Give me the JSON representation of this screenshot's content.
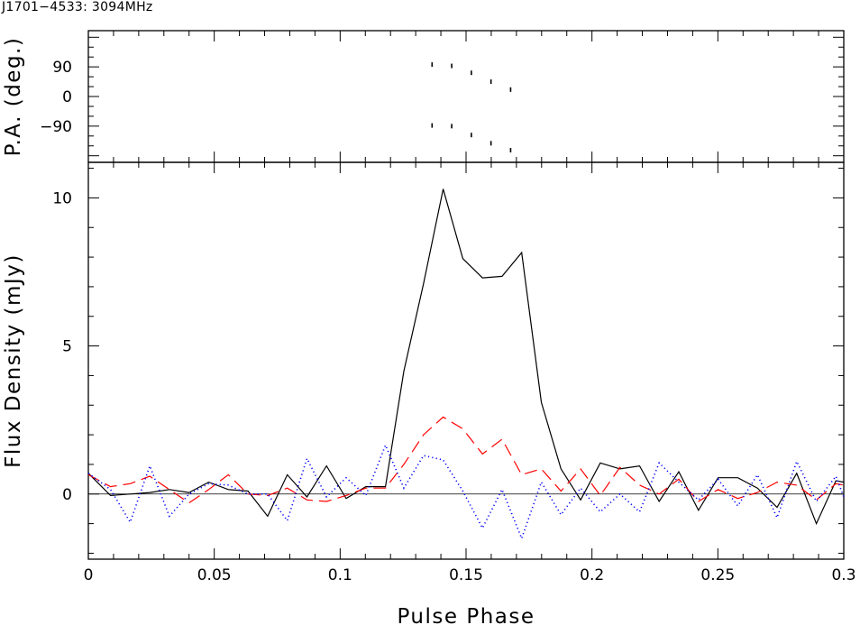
{
  "title": "J1701−4533: 3094MHz",
  "chart_data": [
    {
      "type": "scatter",
      "ylabel": "P.A. (deg.)",
      "xlim": [
        0,
        0.3
      ],
      "ylim": [
        -200,
        200
      ],
      "yticks": [
        {
          "v": 90,
          "label": "90"
        },
        {
          "v": 0,
          "label": "0"
        },
        {
          "v": -90,
          "label": "−90"
        }
      ],
      "points": [
        [
          0.1365,
          97
        ],
        [
          0.1443,
          93
        ],
        [
          0.1521,
          72
        ],
        [
          0.1599,
          45
        ],
        [
          0.1677,
          21
        ],
        [
          0.1365,
          -88
        ],
        [
          0.1443,
          -90
        ],
        [
          0.1521,
          -117
        ],
        [
          0.1599,
          -142
        ],
        [
          0.1677,
          -163
        ]
      ]
    },
    {
      "type": "line",
      "xlabel": "Pulse Phase",
      "ylabel": "Flux Density (mJy)",
      "xlim": [
        0,
        0.3
      ],
      "ylim": [
        -2.2,
        11.2
      ],
      "xticks": [
        {
          "v": 0,
          "label": "0"
        },
        {
          "v": 0.05,
          "label": "0.05"
        },
        {
          "v": 0.1,
          "label": "0.1"
        },
        {
          "v": 0.15,
          "label": "0.15"
        },
        {
          "v": 0.2,
          "label": "0.2"
        },
        {
          "v": 0.25,
          "label": "0.25"
        },
        {
          "v": 0.3,
          "label": "0.3"
        }
      ],
      "yticks": [
        {
          "v": 0,
          "label": "0"
        },
        {
          "v": 5,
          "label": "5"
        },
        {
          "v": 10,
          "label": "10"
        }
      ],
      "x": [
        0,
        0.0088,
        0.0166,
        0.0244,
        0.0322,
        0.04,
        0.0478,
        0.0556,
        0.0634,
        0.0712,
        0.079,
        0.0868,
        0.0946,
        0.1024,
        0.1102,
        0.118,
        0.1253,
        0.1331,
        0.1409,
        0.1487,
        0.1565,
        0.1643,
        0.1721,
        0.1799,
        0.1877,
        0.1955,
        0.2033,
        0.2111,
        0.2189,
        0.2267,
        0.2345,
        0.2423,
        0.2501,
        0.2579,
        0.2657,
        0.2735,
        0.2813,
        0.2891,
        0.2969,
        0.3
      ],
      "series": [
        {
          "color": "#000000",
          "dash": "solid",
          "values": [
            0.7,
            -0.05,
            0.0,
            0.05,
            0.15,
            0.05,
            0.4,
            0.15,
            0.1,
            -0.75,
            0.65,
            -0.1,
            0.95,
            -0.15,
            0.25,
            0.25,
            4.15,
            7.1,
            10.3,
            7.95,
            7.3,
            7.35,
            8.15,
            3.1,
            0.85,
            -0.2,
            1.05,
            0.85,
            0.95,
            -0.25,
            0.75,
            -0.55,
            0.55,
            0.55,
            0.2,
            -0.45,
            0.7,
            -1.0,
            0.45,
            0.4
          ]
        },
        {
          "color": "#ff0000",
          "dash": "dashed",
          "values": [
            0.65,
            0.25,
            0.35,
            0.6,
            0.15,
            -0.3,
            0.15,
            0.65,
            0.0,
            -0.05,
            0.2,
            -0.2,
            -0.25,
            -0.05,
            0.2,
            0.2,
            1.0,
            2.0,
            2.6,
            2.2,
            1.35,
            1.85,
            0.65,
            0.85,
            0.1,
            0.85,
            -0.05,
            0.9,
            0.3,
            0.0,
            0.5,
            -0.25,
            0.15,
            -0.15,
            0.05,
            0.4,
            0.3,
            -0.2,
            0.35,
            0.3
          ]
        },
        {
          "color": "#0000ff",
          "dash": "dotted",
          "values": [
            0.7,
            0.15,
            -0.95,
            0.95,
            -0.75,
            0.0,
            0.35,
            0.3,
            0.0,
            0.0,
            -0.9,
            1.2,
            -0.1,
            0.55,
            -0.05,
            1.65,
            0.2,
            1.3,
            1.15,
            0.1,
            -1.15,
            0.15,
            -1.5,
            0.4,
            -0.7,
            0.2,
            -0.6,
            0.0,
            -0.6,
            1.05,
            0.4,
            -0.2,
            0.5,
            -0.4,
            0.65,
            -0.8,
            1.1,
            -0.25,
            0.6,
            -0.1
          ]
        }
      ]
    }
  ]
}
